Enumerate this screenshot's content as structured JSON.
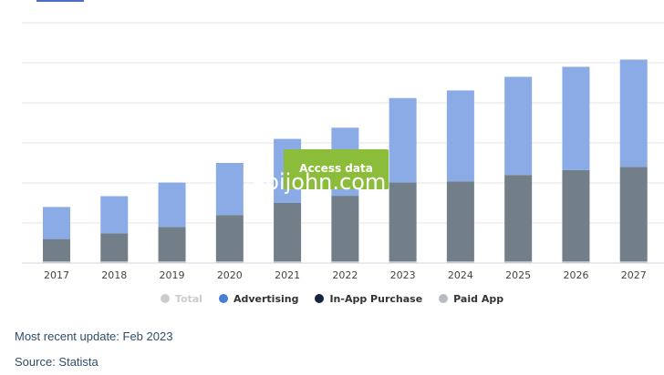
{
  "colors": {
    "advertising": "#8aabe6",
    "in_app_purchase": "#727e88",
    "paid_app": "#c8ccd0",
    "accent": "#8bbd3a",
    "tab_indicator": "#4a6fc4",
    "grid": "#e6e6e6"
  },
  "chart_data": {
    "type": "bar",
    "stacked": true,
    "categories": [
      "2017",
      "2018",
      "2019",
      "2020",
      "2021",
      "2022",
      "2023",
      "2024",
      "2025",
      "2026",
      "2027"
    ],
    "series": [
      {
        "name": "Paid App",
        "values": [
          0.4,
          0.4,
          0.4,
          0.4,
          0.4,
          0.4,
          0.4,
          0.4,
          0.4,
          0.4,
          0.4
        ]
      },
      {
        "name": "In-App Purchase",
        "values": [
          5.6,
          7.0,
          8.6,
          11.6,
          14.6,
          16.4,
          19.7,
          20.0,
          21.6,
          22.8,
          23.6
        ]
      },
      {
        "name": "Advertising",
        "values": [
          8.0,
          9.3,
          11.1,
          13.0,
          16.0,
          17.0,
          21.1,
          22.7,
          24.5,
          25.8,
          26.8
        ]
      }
    ],
    "ylim": [
      0,
      60
    ],
    "grid": true,
    "legend_position": "bottom"
  },
  "legend": [
    {
      "label": "Total",
      "color": "#cccccc",
      "active": false
    },
    {
      "label": "Advertising",
      "color": "#4a7fd6",
      "active": true
    },
    {
      "label": "In-App Purchase",
      "color": "#14253d",
      "active": true
    },
    {
      "label": "Paid App",
      "color": "#b8bcc0",
      "active": true
    }
  ],
  "overlay": {
    "access_button_label": "Access data",
    "watermark": "abijohn.com"
  },
  "footer": {
    "update": "Most recent update: Feb 2023",
    "source": "Source: Statista"
  }
}
